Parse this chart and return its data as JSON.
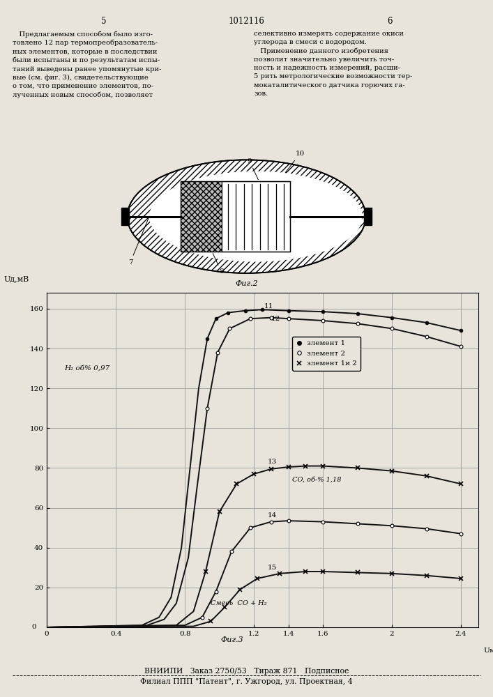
{
  "page_num_left": "5",
  "page_num_center": "1012116",
  "page_num_right": "6",
  "footer1": "ВНИИПИ   Заказ 2750/53   Тираж 871   Подписное",
  "footer2": "Филиал ППП \"Патент\", г. Ужгород, ул. Проектная, 4",
  "text_left": "   Предлагаемым способом было изго-\nтовлено 12 пар термопреобразователь-\nных элементов, которые в последствии\nбыли испытаны и по результатам испы-\nтаний выведены ранее упомянутые кри-\nвые (см. фиг. 3), свидетельствующие\nо том, что применение элементов, по-\nлученных новым способом, позволяет",
  "text_right": "селективно измерять содержание окиси\nуглерода в смеси с водородом.\n   Применение данного изобретения\nпозволит значительно увеличить точ-\nность и надежность измерений, расши-\n5 рить метрологические возможности тер-\nмокаталитического датчика горючих га-\nзов.",
  "fig2_label": "Фиг.2",
  "fig3_label": "Фиг.3",
  "ylabel": "Uд,мВ",
  "xlabel_end": "Uмв",
  "x_ticks": [
    0,
    0.4,
    0.8,
    1.2,
    1.4,
    1.6,
    2.0,
    2.4
  ],
  "y_ticks": [
    20,
    40,
    60,
    80,
    100,
    120,
    140,
    160
  ],
  "xlim": [
    0,
    2.5
  ],
  "ylim": [
    0,
    168
  ],
  "curve11_x": [
    0.0,
    0.55,
    0.65,
    0.72,
    0.78,
    0.83,
    0.88,
    0.93,
    0.98,
    1.05,
    1.15,
    1.25,
    1.4,
    1.6,
    1.8,
    2.0,
    2.2,
    2.4
  ],
  "curve11_y": [
    0.0,
    1.0,
    5.0,
    15.0,
    40.0,
    80.0,
    120.0,
    145.0,
    155.0,
    158.0,
    159.0,
    159.5,
    159.0,
    158.5,
    157.5,
    155.5,
    153.0,
    149.0
  ],
  "curve12_x": [
    0.0,
    0.58,
    0.68,
    0.75,
    0.82,
    0.87,
    0.93,
    0.99,
    1.06,
    1.18,
    1.3,
    1.4,
    1.6,
    1.8,
    2.0,
    2.2,
    2.4
  ],
  "curve12_y": [
    0.0,
    1.0,
    4.0,
    12.0,
    35.0,
    70.0,
    110.0,
    138.0,
    150.0,
    155.0,
    155.5,
    155.0,
    154.0,
    152.5,
    150.0,
    146.0,
    141.0
  ],
  "curve13_x": [
    0.0,
    0.75,
    0.85,
    0.92,
    1.0,
    1.1,
    1.2,
    1.3,
    1.4,
    1.5,
    1.6,
    1.8,
    2.0,
    2.2,
    2.4
  ],
  "curve13_y": [
    0.0,
    1.0,
    8.0,
    28.0,
    58.0,
    72.0,
    77.0,
    79.5,
    80.5,
    81.0,
    81.0,
    80.0,
    78.5,
    76.0,
    72.0
  ],
  "curve14_x": [
    0.0,
    0.8,
    0.9,
    0.98,
    1.07,
    1.18,
    1.3,
    1.4,
    1.6,
    1.8,
    2.0,
    2.2,
    2.4
  ],
  "curve14_y": [
    0.0,
    1.0,
    5.0,
    18.0,
    38.0,
    50.0,
    53.0,
    53.5,
    53.0,
    52.0,
    51.0,
    49.5,
    47.0
  ],
  "curve15_x": [
    0.0,
    0.85,
    0.95,
    1.03,
    1.12,
    1.22,
    1.35,
    1.5,
    1.6,
    1.8,
    2.0,
    2.2,
    2.4
  ],
  "curve15_y": [
    0.0,
    0.5,
    3.0,
    10.0,
    19.0,
    24.5,
    27.0,
    28.0,
    28.0,
    27.5,
    27.0,
    26.0,
    24.5
  ],
  "annotation_h2": "H₂ oб% 0,97",
  "annotation_co": "CO, oб-% 1,18",
  "annotation_mix": "Смесь  CO + H₂",
  "legend_e1": "злемент 1",
  "legend_e2": "злемент 2",
  "legend_e12": "злемент 1и 2",
  "bg_color": "#e8e4dc",
  "line_color": "#111111",
  "grid_color": "#999999"
}
